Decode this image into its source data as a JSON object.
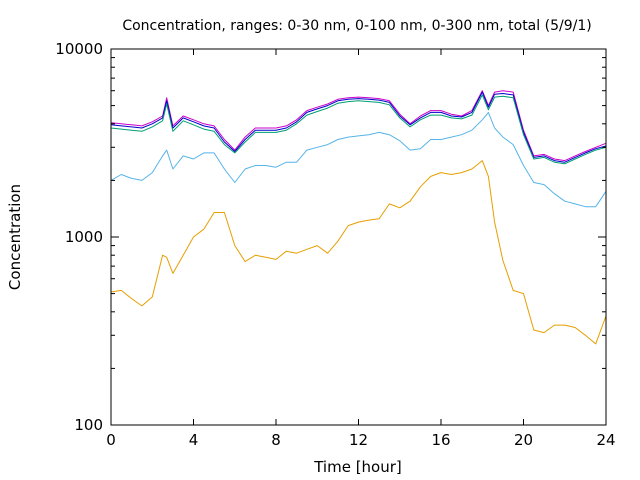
{
  "chart_data": {
    "type": "line",
    "title": "Concentration, ranges: 0-30 nm, 0-100 nm, 0-300 nm, total (5/9/1)",
    "xlabel": "Time [hour]",
    "ylabel": "Concentration",
    "xlim": [
      0,
      24
    ],
    "ylim": [
      100,
      10000
    ],
    "yscale": "log",
    "grid": false,
    "legend": "none",
    "x_ticks": [
      0,
      4,
      8,
      12,
      16,
      20,
      24
    ],
    "x_tick_labels": [
      "0",
      "4",
      "8",
      "12",
      "16",
      "20",
      "24"
    ],
    "y_ticks": [
      100,
      1000,
      10000
    ],
    "y_tick_labels": [
      "100",
      "1000",
      "10000"
    ],
    "x": [
      0,
      0.5,
      1,
      1.5,
      2,
      2.5,
      2.7,
      3,
      3.5,
      4,
      4.5,
      5,
      5.5,
      6,
      6.5,
      7,
      7.5,
      8,
      8.5,
      9,
      9.5,
      10,
      10.5,
      11,
      11.5,
      12,
      12.5,
      13,
      13.5,
      14,
      14.5,
      15,
      15.5,
      16,
      16.5,
      17,
      17.5,
      18,
      18.3,
      18.6,
      19,
      19.5,
      20,
      20.5,
      21,
      21.5,
      22,
      22.5,
      23,
      23.5,
      24
    ],
    "series": [
      {
        "color": "#cc00cc",
        "values": [
          4050,
          4000,
          3950,
          3900,
          4100,
          4400,
          5500,
          3900,
          4400,
          4200,
          4000,
          3900,
          3300,
          2900,
          3400,
          3800,
          3800,
          3800,
          3900,
          4200,
          4700,
          4900,
          5100,
          5400,
          5500,
          5550,
          5500,
          5450,
          5300,
          4500,
          4000,
          4400,
          4700,
          4700,
          4500,
          4400,
          4700,
          6000,
          5000,
          5900,
          6000,
          5900,
          3700,
          2700,
          2750,
          2600,
          2550,
          2700,
          2850,
          3000,
          3150
        ]
      },
      {
        "color": "#0000cc",
        "values": [
          3950,
          3900,
          3850,
          3800,
          4000,
          4300,
          5300,
          3800,
          4300,
          4100,
          3900,
          3800,
          3200,
          2850,
          3300,
          3700,
          3700,
          3700,
          3800,
          4100,
          4600,
          4800,
          5000,
          5300,
          5400,
          5450,
          5400,
          5350,
          5200,
          4400,
          3950,
          4300,
          4600,
          4600,
          4400,
          4350,
          4600,
          5900,
          4900,
          5750,
          5800,
          5700,
          3600,
          2650,
          2700,
          2550,
          2500,
          2650,
          2800,
          2950,
          3050
        ]
      },
      {
        "color": "#009e73",
        "values": [
          3800,
          3750,
          3700,
          3650,
          3850,
          4150,
          5100,
          3650,
          4150,
          3950,
          3750,
          3650,
          3100,
          2800,
          3200,
          3600,
          3600,
          3600,
          3700,
          4000,
          4450,
          4650,
          4850,
          5150,
          5250,
          5300,
          5250,
          5200,
          5050,
          4300,
          3850,
          4200,
          4450,
          4450,
          4300,
          4250,
          4450,
          5700,
          4750,
          5550,
          5600,
          5500,
          3500,
          2600,
          2650,
          2500,
          2450,
          2600,
          2750,
          2900,
          3000
        ]
      },
      {
        "color": "#56b4e9",
        "values": [
          2000,
          2150,
          2050,
          2000,
          2200,
          2700,
          2900,
          2300,
          2700,
          2600,
          2800,
          2800,
          2300,
          1950,
          2300,
          2400,
          2400,
          2350,
          2500,
          2500,
          2900,
          3000,
          3100,
          3300,
          3400,
          3450,
          3500,
          3600,
          3500,
          3250,
          2900,
          2950,
          3300,
          3300,
          3400,
          3500,
          3700,
          4200,
          4600,
          3800,
          3400,
          3100,
          2400,
          1950,
          1900,
          1700,
          1550,
          1500,
          1450,
          1450,
          1750
        ]
      },
      {
        "color": "#e69f00",
        "values": [
          510,
          520,
          470,
          430,
          480,
          800,
          780,
          640,
          800,
          1000,
          1100,
          1350,
          1350,
          900,
          740,
          800,
          780,
          760,
          840,
          820,
          860,
          900,
          820,
          950,
          1150,
          1200,
          1230,
          1250,
          1500,
          1430,
          1550,
          1850,
          2100,
          2200,
          2150,
          2200,
          2300,
          2550,
          2100,
          1200,
          750,
          520,
          500,
          320,
          310,
          340,
          340,
          330,
          300,
          270,
          380
        ]
      }
    ]
  }
}
